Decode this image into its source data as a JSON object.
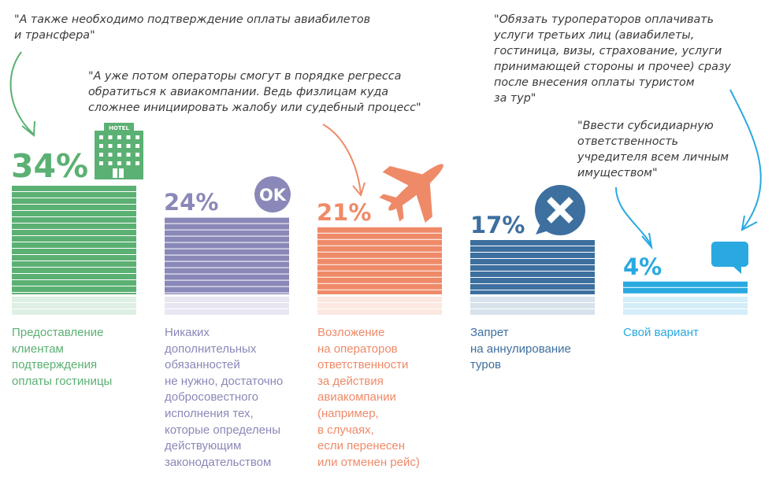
{
  "chart_data": {
    "type": "bar",
    "title": "",
    "ylim": [
      0,
      34
    ],
    "categories": [
      "Предоставление\nклиентам\nподтверждения\nоплаты гостиницы",
      "Никаких\nдополнительных\nобязанностей\nне нужно, достаточно\nдобросовестного\nисполнения тех,\nкоторые определены\nдействующим\nзаконодательством",
      "Возложение\nна операторов\nответственности\nза действия\nавиакомпании\n(например,\nв случаях,\nесли перенесен\nили отменен рейс)",
      "Запрет\nна аннулирование\nтуров",
      "Свой вариант"
    ],
    "values": [
      34,
      24,
      21,
      17,
      4
    ],
    "value_labels": [
      "34%",
      "24%",
      "21%",
      "17%",
      "4%"
    ],
    "colors": [
      "#5bb073",
      "#8a88b8",
      "#ef8a68",
      "#3d6f9f",
      "#29a9e0"
    ],
    "icons": [
      "hotel-icon",
      "ok-icon",
      "airplane-icon",
      "cross-bubble-icon",
      "chat-bubble-icon"
    ],
    "icon_text": {
      "hotel": "HOTEL",
      "ok": "OK"
    },
    "annotations": [
      "\"А также необходимо подтверждение оплаты авиабилетов\nи трансфера\"",
      "\"А уже потом операторы смогут в порядке регресса\nобратиться к авиакомпании. Ведь физлицам куда\nсложнее инициировать жалобу или судебный процесс\"",
      "\"Обязать туроператоров оплачивать\nуслуги третьих лиц (авиабилеты,\nгостиница, визы, страхование, услуги\nпринимающей стороны и прочее) сразу\nпосле внесения оплаты туристом\nза тур\"",
      "\"Ввести субсидиарную\nответственность\nучредителя всем личным\nимуществом\""
    ]
  }
}
